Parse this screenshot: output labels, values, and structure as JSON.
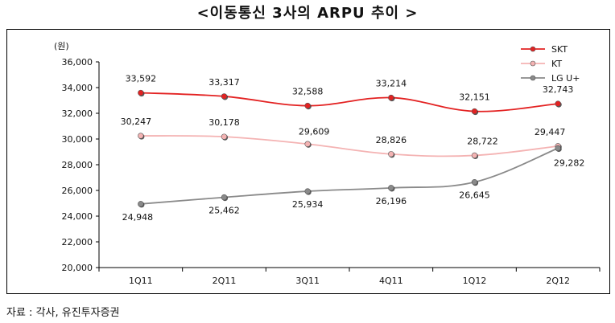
{
  "title": "<이동통신 3사의 ARPU 추이 >",
  "source": "자료 : 각사, 유진투자증권",
  "colors": {
    "SKT": "#e32222",
    "KT": "#f4b3b3",
    "LG U+": "#8a8a8a",
    "axis": "#000000"
  },
  "chart_data": {
    "type": "line",
    "title": "<이동통신 3사의 ARPU 추이 >",
    "unit_label": "(원)",
    "xlabel": "",
    "ylabel": "(원)",
    "categories": [
      "1Q11",
      "2Q11",
      "3Q11",
      "4Q11",
      "1Q12",
      "2Q12"
    ],
    "ylim": [
      20000,
      36000
    ],
    "yticks": [
      20000,
      22000,
      24000,
      26000,
      28000,
      30000,
      32000,
      34000,
      36000
    ],
    "ytick_labels": [
      "20,000",
      "22,000",
      "24,000",
      "26,000",
      "28,000",
      "30,000",
      "32,000",
      "34,000",
      "36,000"
    ],
    "legend_position": "top-right",
    "grid": false,
    "series": [
      {
        "name": "SKT",
        "values": [
          33592,
          33317,
          32588,
          33214,
          32151,
          32743
        ],
        "labels": [
          "33,592",
          "33,317",
          "32,588",
          "33,214",
          "32,151",
          "32,743"
        ]
      },
      {
        "name": "KT",
        "values": [
          30247,
          30178,
          29609,
          28826,
          28722,
          29447
        ],
        "labels": [
          "30,247",
          "30,178",
          "29,609",
          "28,826",
          "28,722",
          "29,447"
        ]
      },
      {
        "name": "LG U+",
        "values": [
          24948,
          25462,
          25934,
          26196,
          26645,
          29282
        ],
        "labels": [
          "24,948",
          "25,462",
          "25,934",
          "26,196",
          "26,645",
          "29,282"
        ]
      }
    ]
  }
}
